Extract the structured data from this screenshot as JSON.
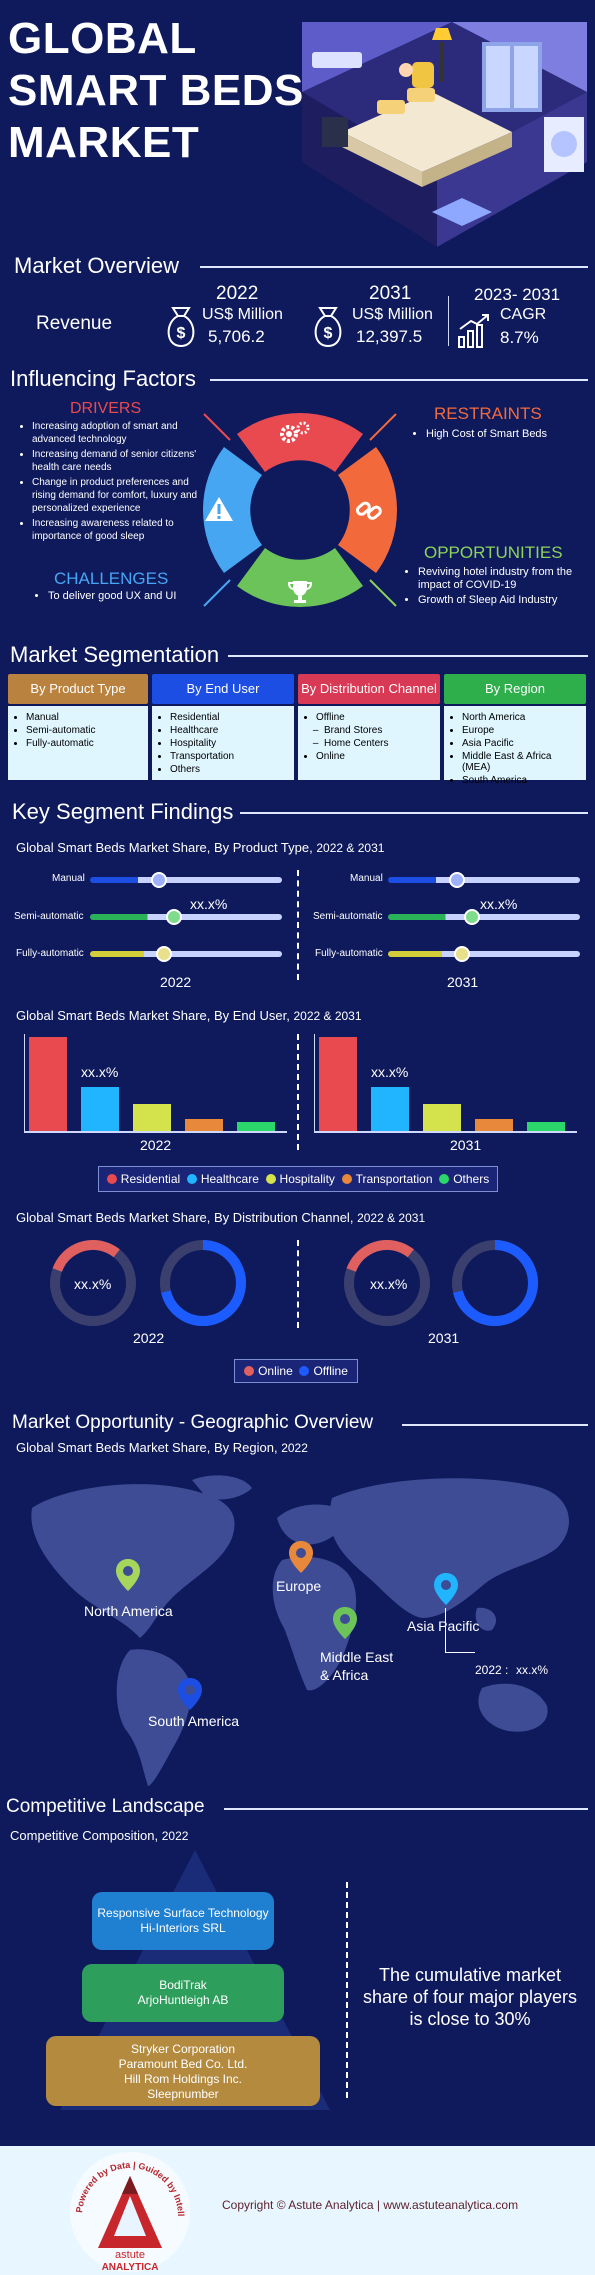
{
  "header": {
    "title_line1": "GLOBAL",
    "title_line2": "SMART BEDS",
    "title_line3": "MARKET"
  },
  "overview": {
    "heading": "Market Overview",
    "revenue_label": "Revenue",
    "y1_year": "2022",
    "y1_unit": "US$ Million",
    "y1_value": "5,706.2",
    "y2_year": "2031",
    "y2_unit": "US$ Million",
    "y2_value": "12,397.5",
    "cagr_period": "2023- 2031",
    "cagr_label": "CAGR",
    "cagr_value": "8.7%"
  },
  "factors": {
    "heading": "Influencing Factors",
    "drivers_title": "DRIVERS",
    "drivers": [
      "Increasing adoption of smart and advanced technology",
      "Increasing demand of senior citizens' health care needs",
      "Change in product preferences and rising demand for comfort, luxury and personalized experience",
      "Increasing awareness related to importance of good sleep"
    ],
    "restraints_title": "RESTRAINTS",
    "restraints": [
      "High Cost of Smart Beds"
    ],
    "challenges_title": "CHALLENGES",
    "challenges": [
      "To deliver good UX and UI"
    ],
    "opportunities_title": "OPPORTUNITIES",
    "opportunities": [
      "Reviving hotel industry from the impact of COVID-19",
      "Growth of Sleep Aid Industry"
    ]
  },
  "segmentation": {
    "heading": "Market Segmentation",
    "cols": [
      {
        "title": "By Product Type",
        "items": [
          "Manual",
          "Semi-automatic",
          "Fully-automatic"
        ]
      },
      {
        "title": "By End User",
        "items": [
          "Residential",
          "Healthcare",
          "Hospitality",
          "Transportation",
          "Others"
        ]
      },
      {
        "title": "By Distribution Channel",
        "items": [
          "Offline",
          "Brand Stores",
          "Home Centers",
          "Online"
        ]
      },
      {
        "title": "By Region",
        "items": [
          "North America",
          "Europe",
          "Asia Pacific",
          "Middle East & Africa (MEA)",
          "South America"
        ]
      }
    ]
  },
  "findings": {
    "heading": "Key Segment Findings",
    "product_title": "Global Smart Beds Market Share, By Product Type,",
    "product_years": "2022 & 2031",
    "product_labels": [
      "Manual",
      "Semi-automatic",
      "Fully-automatic"
    ],
    "placeholder": "xx.x%",
    "year_a": "2022",
    "year_b": "2031",
    "enduser_title": "Global Smart Beds Market Share, By End User,",
    "enduser_years": "2022 & 2031",
    "enduser_legend": [
      "Residential",
      "Healthcare",
      "Hospitality",
      "Transportation",
      "Others"
    ],
    "channel_title": "Global Smart Beds Market Share, By Distribution Channel,",
    "channel_years": "2022 & 2031",
    "channel_legend": [
      "Online",
      "Offline"
    ]
  },
  "geo": {
    "heading": "Market Opportunity - Geographic Overview",
    "subtitle": "Global Smart Beds Market Share, By Region,",
    "subtitle_year": "2022",
    "regions": [
      "North America",
      "Europe",
      "Asia Pacific",
      "Middle East",
      "& Africa",
      "South America"
    ],
    "callout_year": "2022 :",
    "callout_value": "xx.x%"
  },
  "competitive": {
    "heading": "Competitive Landscape",
    "subtitle": "Competitive Composition,",
    "subtitle_year": "2022",
    "tier1": [
      "Responsive Surface Technology",
      "Hi-Interiors SRL"
    ],
    "tier2": [
      "BodiTrak",
      "ArjoHuntleigh AB"
    ],
    "tier3": [
      "Stryker Corporation",
      "Paramount Bed Co. Ltd.",
      "Hill Rom Holdings Inc.",
      "Sleepnumber"
    ],
    "note": "The cumulative market share of four major players is close to 30%"
  },
  "footer": {
    "logo_ring": "Powered by Data | Guided by Intelligence",
    "logo_name1": "astute",
    "logo_name2": "ANALYTICA",
    "copyright": "Copyright © Astute Analytica  |  www.astuteanalytica.com"
  },
  "colors": {
    "background": "#0f1a5c",
    "drivers": "#e84a50",
    "restraints": "#f26a3c",
    "challenges": "#46a6f2",
    "opportunities": "#8dd25a",
    "residential": "#e84a50",
    "healthcare": "#21b5ff",
    "hospitality": "#d4e34b",
    "transportation": "#e8883a",
    "others": "#2bd66b"
  }
}
